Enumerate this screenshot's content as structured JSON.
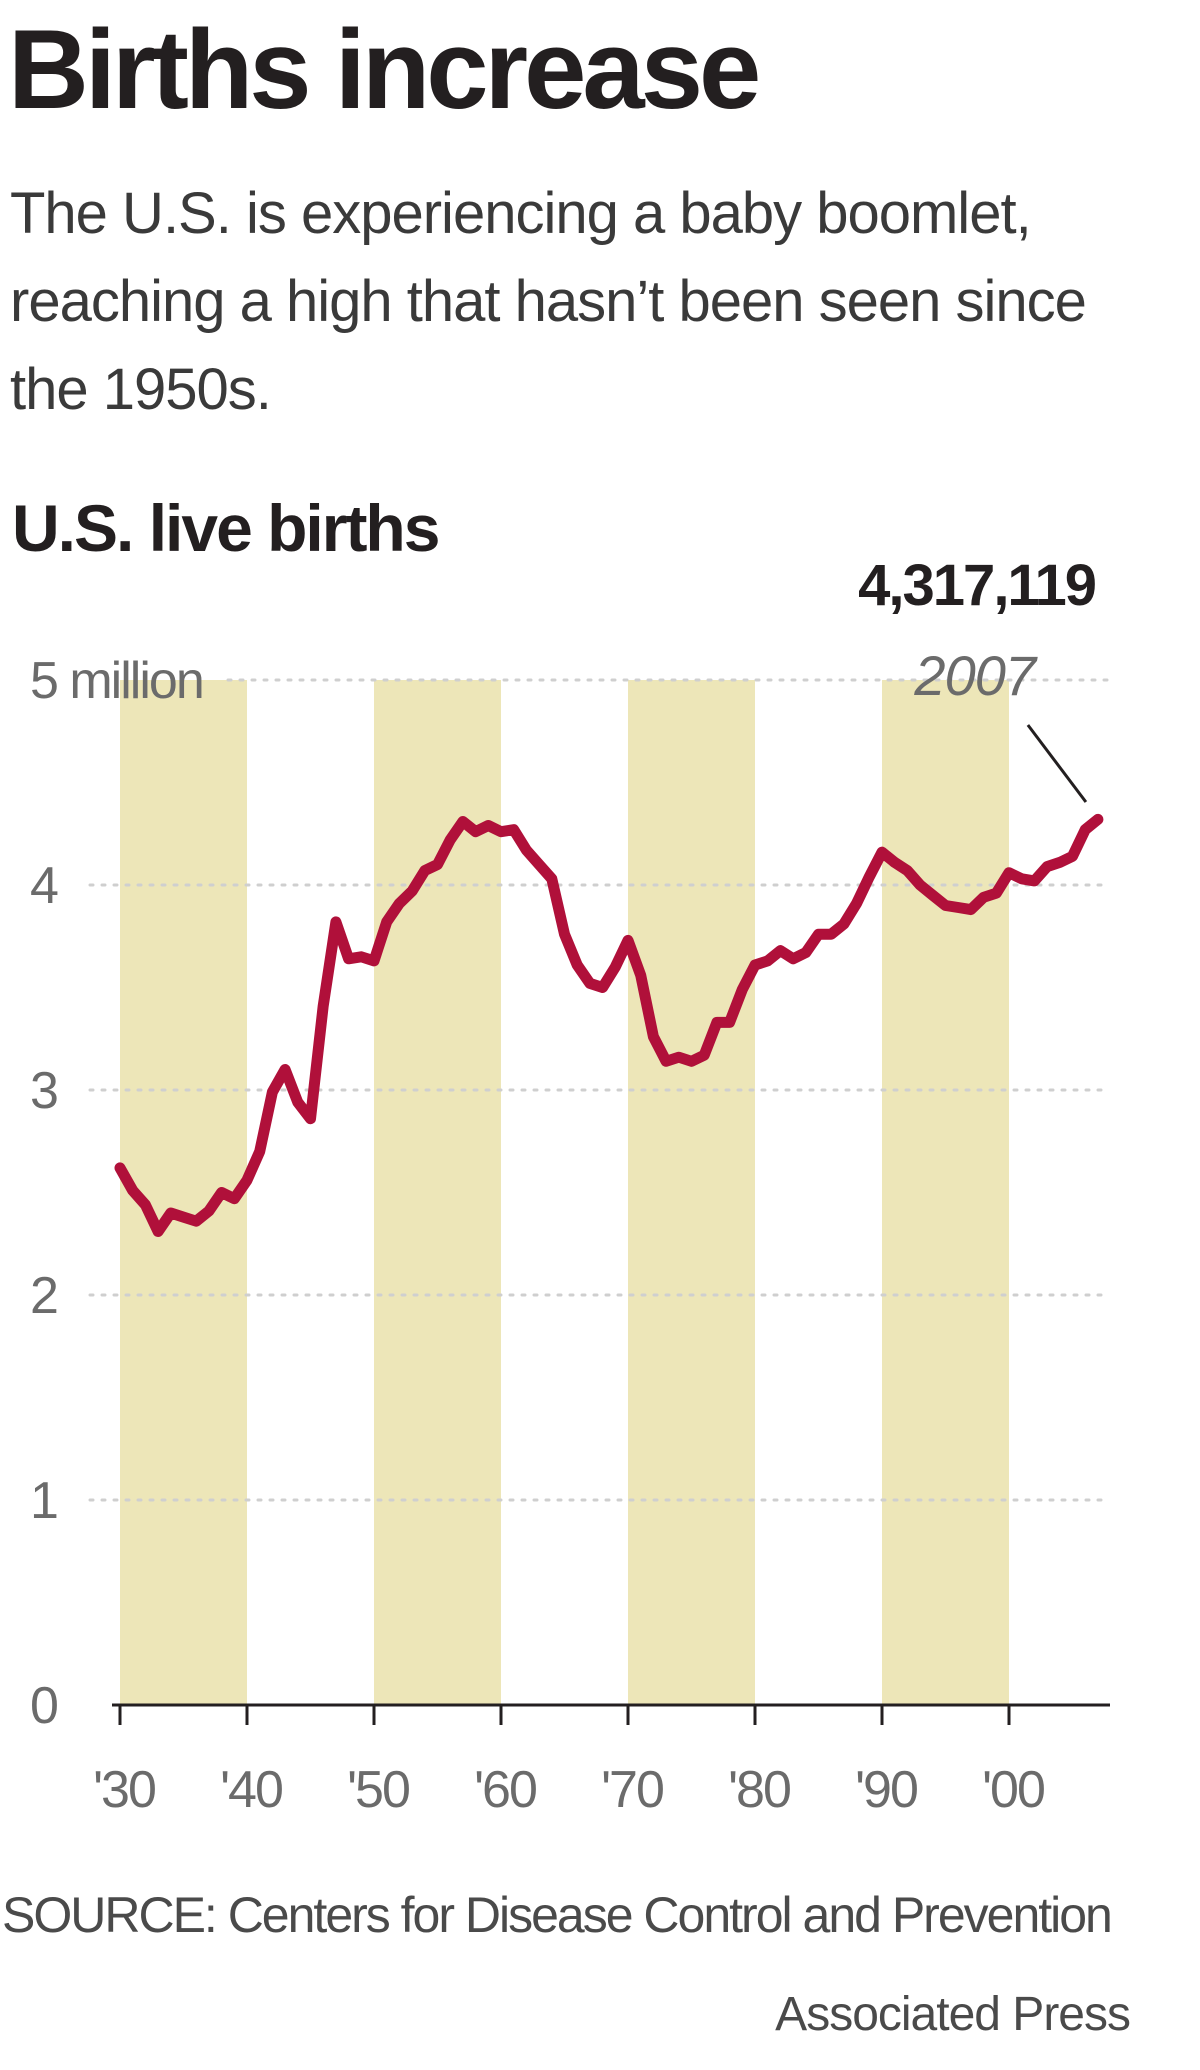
{
  "headline": "Births increase",
  "subhead": "The U.S. is experiencing a baby boomlet, reaching a high that hasn’t been seen since the 1950s.",
  "source": "SOURCE: Centers for Disease Control and Prevention",
  "credit": "Associated Press",
  "colors": {
    "line": "#b0103a",
    "decade_band": "#ede6b8",
    "gridline": "#cfcfcf",
    "text": "#231f20",
    "axis_text": "#6b6b6b"
  },
  "chart_data": {
    "type": "line",
    "title": "U.S. live births",
    "ylabel": "",
    "xlabel": "",
    "xlim": [
      1930,
      2007
    ],
    "ylim": [
      0,
      5
    ],
    "y_ticks": [
      {
        "value": 5,
        "label": "5 million"
      },
      {
        "value": 4,
        "label": "4"
      },
      {
        "value": 3,
        "label": "3"
      },
      {
        "value": 2,
        "label": "2"
      },
      {
        "value": 1,
        "label": "1"
      },
      {
        "value": 0,
        "label": "0"
      }
    ],
    "x_ticks": [
      {
        "value": 1930,
        "label": "'30"
      },
      {
        "value": 1940,
        "label": "'40"
      },
      {
        "value": 1950,
        "label": "'50"
      },
      {
        "value": 1960,
        "label": "'60"
      },
      {
        "value": 1970,
        "label": "'70"
      },
      {
        "value": 1980,
        "label": "'80"
      },
      {
        "value": 1990,
        "label": "'90"
      },
      {
        "value": 2000,
        "label": "'00"
      }
    ],
    "shaded_bands": [
      [
        1930,
        1940
      ],
      [
        1950,
        1960
      ],
      [
        1970,
        1980
      ],
      [
        1990,
        2000
      ]
    ],
    "grid": true,
    "unit": "millions",
    "series": [
      {
        "x": [
          1930,
          1931,
          1932,
          1933,
          1934,
          1935,
          1936,
          1937,
          1938,
          1939,
          1940,
          1941,
          1942,
          1943,
          1944,
          1945,
          1946,
          1947,
          1948,
          1949,
          1950,
          1951,
          1952,
          1953,
          1954,
          1955,
          1956,
          1957,
          1958,
          1959,
          1960,
          1961,
          1962,
          1963,
          1964,
          1965,
          1966,
          1967,
          1968,
          1969,
          1970,
          1971,
          1972,
          1973,
          1974,
          1975,
          1976,
          1977,
          1978,
          1979,
          1980,
          1981,
          1982,
          1983,
          1984,
          1985,
          1986,
          1987,
          1988,
          1989,
          1990,
          1991,
          1992,
          1993,
          1994,
          1995,
          1996,
          1997,
          1998,
          1999,
          2000,
          2001,
          2002,
          2003,
          2004,
          2005,
          2006,
          2007
        ],
        "values": [
          2.62,
          2.51,
          2.44,
          2.31,
          2.4,
          2.38,
          2.36,
          2.41,
          2.5,
          2.47,
          2.56,
          2.7,
          2.99,
          3.1,
          2.94,
          2.86,
          3.41,
          3.82,
          3.64,
          3.65,
          3.63,
          3.82,
          3.91,
          3.97,
          4.07,
          4.1,
          4.22,
          4.31,
          4.26,
          4.29,
          4.26,
          4.27,
          4.17,
          4.1,
          4.03,
          3.76,
          3.61,
          3.52,
          3.5,
          3.6,
          3.73,
          3.56,
          3.26,
          3.14,
          3.16,
          3.14,
          3.17,
          3.33,
          3.33,
          3.49,
          3.61,
          3.63,
          3.68,
          3.64,
          3.67,
          3.76,
          3.76,
          3.81,
          3.91,
          4.04,
          4.16,
          4.11,
          4.07,
          4.0,
          3.95,
          3.9,
          3.89,
          3.88,
          3.94,
          3.96,
          4.06,
          4.03,
          4.02,
          4.09,
          4.11,
          4.14,
          4.27,
          4.32
        ]
      }
    ],
    "annotations": [
      {
        "value_label": "4,317,119",
        "year_label": "2007",
        "x": 2007,
        "y": 4.317119
      }
    ]
  }
}
